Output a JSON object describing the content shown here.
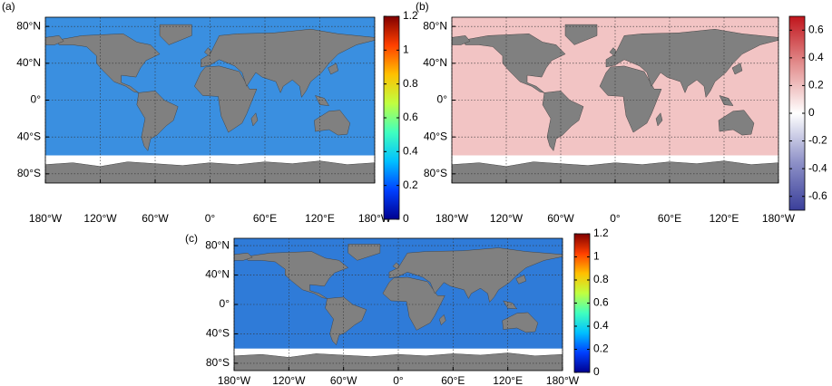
{
  "chart_data": [
    {
      "type": "map",
      "panel_label": "(a)",
      "xlim": [
        -180,
        180
      ],
      "ylim": [
        -90,
        90
      ],
      "xticks": [
        {
          "value": -180,
          "label": "180°W"
        },
        {
          "value": -120,
          "label": "120°W"
        },
        {
          "value": -60,
          "label": "60°W"
        },
        {
          "value": 0,
          "label": "0°"
        },
        {
          "value": 60,
          "label": "60°E"
        },
        {
          "value": 120,
          "label": "120°E"
        },
        {
          "value": 180,
          "label": "180°W"
        }
      ],
      "yticks": [
        {
          "value": 80,
          "label": "80°N"
        },
        {
          "value": 40,
          "label": "40°N"
        },
        {
          "value": 0,
          "label": "0°"
        },
        {
          "value": -40,
          "label": "40°S"
        },
        {
          "value": -80,
          "label": "80°S"
        }
      ],
      "grid": true,
      "ocean_color": "#3a8fe0",
      "colorbar_lim": [
        0,
        1.2
      ],
      "colorbar_ticks": [
        0,
        0.2,
        0.4,
        0.6,
        0.8,
        1,
        1.2
      ],
      "colormap": [
        "#00008f",
        "#0040ff",
        "#00c0ff",
        "#40ffbf",
        "#c0ff40",
        "#ffc000",
        "#ff4000",
        "#800000"
      ]
    },
    {
      "type": "map",
      "panel_label": "(b)",
      "xlim": [
        -180,
        180
      ],
      "ylim": [
        -90,
        90
      ],
      "xticks": [
        {
          "value": -180,
          "label": "180°W"
        },
        {
          "value": -120,
          "label": "120°W"
        },
        {
          "value": -60,
          "label": "60°W"
        },
        {
          "value": 0,
          "label": "0°"
        },
        {
          "value": 60,
          "label": "60°E"
        },
        {
          "value": 120,
          "label": "120°E"
        },
        {
          "value": 180,
          "label": "180°W"
        }
      ],
      "yticks": [
        {
          "value": 80,
          "label": "80°N"
        },
        {
          "value": 40,
          "label": "40°N"
        },
        {
          "value": 0,
          "label": "0°"
        },
        {
          "value": -40,
          "label": "40°S"
        },
        {
          "value": -80,
          "label": "80°S"
        }
      ],
      "grid": true,
      "ocean_color": "#f2c4c4",
      "colorbar_lim": [
        -0.7,
        0.7
      ],
      "colorbar_ticks": [
        -0.6,
        -0.4,
        -0.2,
        0,
        0.2,
        0.4,
        0.6
      ],
      "colormap": [
        "#3a3f9a",
        "#8f92c8",
        "#ffffff",
        "#e39090",
        "#c0151c"
      ]
    },
    {
      "type": "map",
      "panel_label": "(c)",
      "xlim": [
        -180,
        180
      ],
      "ylim": [
        -90,
        90
      ],
      "xticks": [
        {
          "value": -180,
          "label": "180°W"
        },
        {
          "value": -120,
          "label": "120°W"
        },
        {
          "value": -60,
          "label": "60°W"
        },
        {
          "value": 0,
          "label": "0°"
        },
        {
          "value": 60,
          "label": "60°E"
        },
        {
          "value": 120,
          "label": "120°E"
        },
        {
          "value": 180,
          "label": "180°W"
        }
      ],
      "yticks": [
        {
          "value": 80,
          "label": "80°N"
        },
        {
          "value": 40,
          "label": "40°N"
        },
        {
          "value": 0,
          "label": "0°"
        },
        {
          "value": -40,
          "label": "40°S"
        },
        {
          "value": -80,
          "label": "80°S"
        }
      ],
      "grid": true,
      "ocean_color": "#2f7bd8",
      "colorbar_lim": [
        0,
        1.2
      ],
      "colorbar_ticks": [
        0,
        0.2,
        0.4,
        0.6,
        0.8,
        1,
        1.2
      ],
      "colormap": [
        "#00008f",
        "#0040ff",
        "#00c0ff",
        "#40ffbf",
        "#c0ff40",
        "#ffc000",
        "#ff4000",
        "#800000"
      ]
    }
  ]
}
